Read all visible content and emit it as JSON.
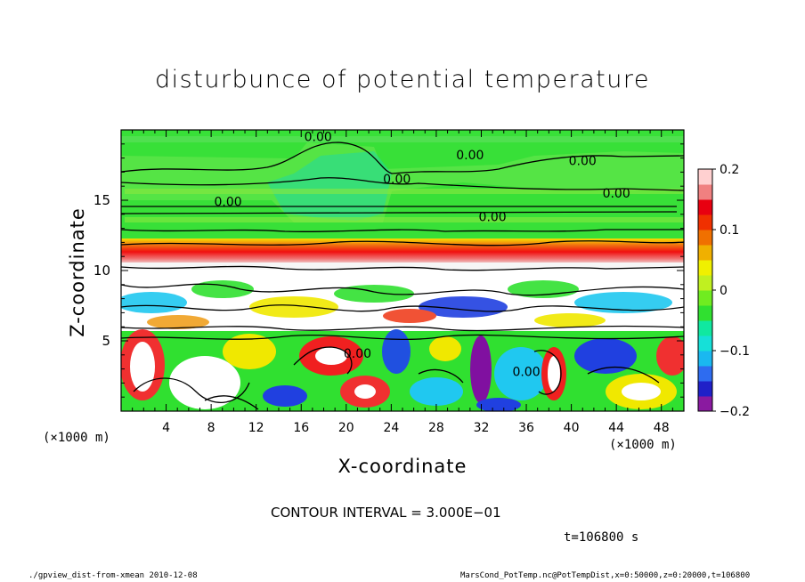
{
  "chart_data": {
    "type": "heatmap",
    "title": "disturbunce of potential temperature",
    "xlabel": "X-coordinate",
    "ylabel": "Z-coordinate",
    "x_unit": "(×1000 m)",
    "xlim": [
      0,
      50
    ],
    "ylim": [
      0,
      20
    ],
    "x_ticks": [
      4,
      8,
      12,
      16,
      20,
      24,
      28,
      32,
      36,
      40,
      44,
      48
    ],
    "y_ticks": [
      5,
      10,
      15
    ],
    "colorbar": {
      "range": [
        -0.2,
        0.2
      ],
      "tick_labels": [
        "0.2",
        "0.1",
        "0",
        "−0.1",
        "−0.2"
      ],
      "tick_values": [
        0.2,
        0.1,
        0,
        -0.1,
        -0.2
      ],
      "colors": [
        "#8a1aa0",
        "#2020c8",
        "#2e6cf0",
        "#1ab8f0",
        "#16e0d8",
        "#10e8a0",
        "#30e030",
        "#70ec20",
        "#c0f020",
        "#f0f000",
        "#f0b000",
        "#f07000",
        "#f03000",
        "#e80010",
        "#f08080",
        "#ffd0d0"
      ]
    },
    "contour_interval": "CONTOUR INTERVAL = 3.000E−01",
    "contour_labels": [
      "0.00",
      "0.00",
      "0.00",
      "0.00",
      "0.00",
      "0.00",
      "0.00",
      "0.00",
      "0.00"
    ],
    "layers": [
      {
        "z_range": [
          14,
          20
        ],
        "value": 0.0,
        "description": "green"
      },
      {
        "z_range": [
          11,
          12.2
        ],
        "value": 0.13,
        "description": "red band"
      },
      {
        "z_range": [
          6,
          11
        ],
        "value": -0.05,
        "description": "mixed"
      },
      {
        "z_range": [
          0,
          6
        ],
        "value": 0.05,
        "description": "convective cells"
      }
    ]
  },
  "annotations": {
    "time": "t=106800 s",
    "footer_left": "./gpview_dist-from-xmean   2010-12-08",
    "footer_right": "MarsCond_PotTemp.nc@PotTempDist,x=0:50000,z=0:20000,t=106800"
  },
  "colors": {
    "green": "#22dd22",
    "light_green": "#40e840",
    "teal": "#20d8a0",
    "cyan": "#18c0f0",
    "blue": "#2040e0",
    "purple": "#8010a0",
    "red": "#f02010",
    "orange": "#f09020",
    "yellow": "#f0e800",
    "white": "#ffffff"
  }
}
